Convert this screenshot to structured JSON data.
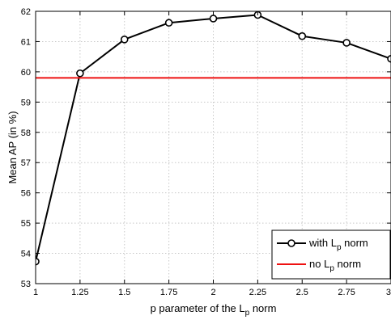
{
  "chart_data": {
    "type": "line",
    "xlabel_prefix": "p parameter of the L",
    "xlabel_sub": "p",
    "xlabel_suffix": " norm",
    "ylabel": "Mean AP (in %)",
    "xlim": [
      1,
      3
    ],
    "ylim": [
      53,
      62
    ],
    "x_ticks": [
      1,
      1.25,
      1.5,
      1.75,
      2,
      2.25,
      2.5,
      2.75,
      3
    ],
    "x_tick_labels": [
      "1",
      "1.25",
      "1.5",
      "1.75",
      "2",
      "2.25",
      "2.5",
      "2.75",
      "3"
    ],
    "y_ticks": [
      53,
      54,
      55,
      56,
      57,
      58,
      59,
      60,
      61,
      62
    ],
    "y_tick_labels": [
      "53",
      "54",
      "55",
      "56",
      "57",
      "58",
      "59",
      "60",
      "61",
      "62"
    ],
    "grid": true,
    "legend_position": "bottom-right",
    "series": [
      {
        "legend_prefix": "with L",
        "legend_sub": "p",
        "legend_suffix": " norm",
        "color": "#000000",
        "marker": "circle",
        "x": [
          1,
          1.25,
          1.5,
          1.75,
          2,
          2.25,
          2.5,
          2.75,
          3
        ],
        "y": [
          53.73,
          59.95,
          61.07,
          61.62,
          61.76,
          61.88,
          61.18,
          60.96,
          60.43
        ]
      },
      {
        "legend_prefix": "no L",
        "legend_sub": "p",
        "legend_suffix": " norm",
        "color": "#ee1111",
        "marker": "none",
        "x": [
          1,
          3
        ],
        "y": [
          59.8,
          59.8
        ]
      }
    ]
  }
}
